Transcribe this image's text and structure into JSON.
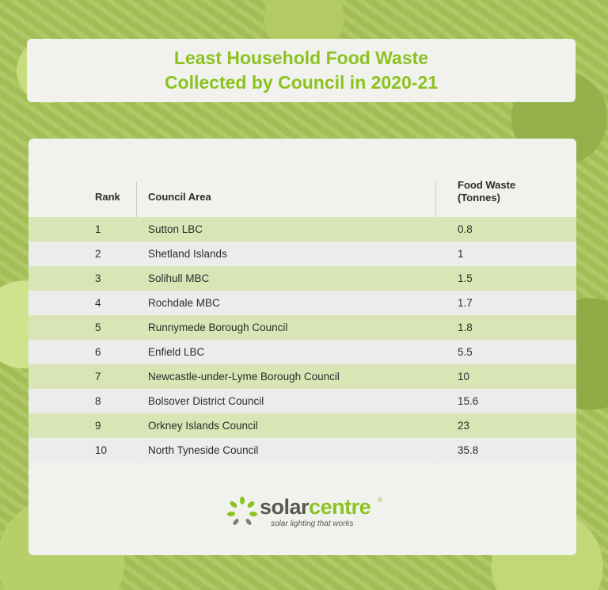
{
  "title": {
    "line1": "Least Household Food Waste",
    "line2": "Collected by Council in 2020-21"
  },
  "colors": {
    "accent": "#8cc21f",
    "row_green": "#d9e5b5",
    "row_grey": "#ececea"
  },
  "table": {
    "headers": {
      "rank": "Rank",
      "area": "Council Area",
      "waste_line1": "Food Waste",
      "waste_line2": "(Tonnes)"
    },
    "rows": [
      {
        "rank": "1",
        "area": "Sutton LBC",
        "waste": "0.8"
      },
      {
        "rank": "2",
        "area": "Shetland Islands",
        "waste": "1"
      },
      {
        "rank": "3",
        "area": "Solihull MBC",
        "waste": "1.5"
      },
      {
        "rank": "4",
        "area": "Rochdale MBC",
        "waste": "1.7"
      },
      {
        "rank": "5",
        "area": "Runnymede Borough Council",
        "waste": "1.8"
      },
      {
        "rank": "6",
        "area": "Enfield LBC",
        "waste": "5.5"
      },
      {
        "rank": "7",
        "area": "Newcastle-under-Lyme Borough Council",
        "waste": "10"
      },
      {
        "rank": "8",
        "area": "Bolsover District Council",
        "waste": "15.6"
      },
      {
        "rank": "9",
        "area": "Orkney Islands Council",
        "waste": "23"
      },
      {
        "rank": "10",
        "area": "North Tyneside Council",
        "waste": "35.8"
      }
    ]
  },
  "logo": {
    "solar": "solar",
    "centre": "centre",
    "reg": "®",
    "tagline": "solar lighting that works",
    "icon": "sun-leaf-icon"
  }
}
